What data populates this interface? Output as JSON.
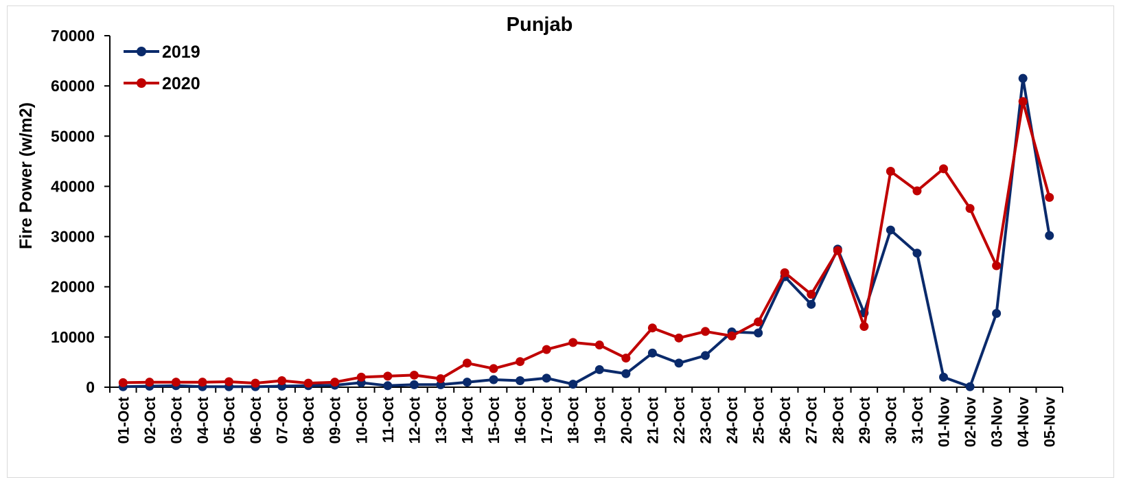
{
  "chart_data": {
    "type": "line",
    "title": "Punjab",
    "xlabel": "",
    "ylabel": "Fire Power (w/m2)",
    "ylim": [
      0,
      70000
    ],
    "yticks": [
      0,
      10000,
      20000,
      30000,
      40000,
      50000,
      60000,
      70000
    ],
    "grid": false,
    "legend_position": "top-left",
    "categories": [
      "01-Oct",
      "02-Oct",
      "03-Oct",
      "04-Oct",
      "05-Oct",
      "06-Oct",
      "07-Oct",
      "08-Oct",
      "09-Oct",
      "10-Oct",
      "11-Oct",
      "12-Oct",
      "13-Oct",
      "14-Oct",
      "15-Oct",
      "16-Oct",
      "17-Oct",
      "18-Oct",
      "19-Oct",
      "20-Oct",
      "21-Oct",
      "22-Oct",
      "23-Oct",
      "24-Oct",
      "25-Oct",
      "26-Oct",
      "27-Oct",
      "28-Oct",
      "29-Oct",
      "30-Oct",
      "31-Oct",
      "01-Nov",
      "02-Nov",
      "03-Nov",
      "04-Nov",
      "05-Nov"
    ],
    "series": [
      {
        "name": "2019",
        "color": "#0a2a6b",
        "values": [
          100,
          200,
          300,
          100,
          100,
          100,
          200,
          300,
          400,
          900,
          300,
          500,
          500,
          1000,
          1500,
          1300,
          1800,
          600,
          3500,
          2700,
          6800,
          4800,
          6300,
          11000,
          10800,
          22000,
          16500,
          27500,
          14800,
          31300,
          26700,
          2000,
          100,
          14700,
          61500,
          30200
        ]
      },
      {
        "name": "2020",
        "color": "#c00000",
        "values": [
          900,
          1000,
          1000,
          1000,
          1100,
          800,
          1300,
          800,
          1000,
          2000,
          2200,
          2400,
          1700,
          4800,
          3700,
          5100,
          7500,
          8900,
          8400,
          5800,
          11800,
          9800,
          11100,
          10200,
          13000,
          22800,
          18500,
          27200,
          12100,
          43000,
          39100,
          43500,
          35600,
          24200,
          56900,
          37800
        ]
      }
    ]
  }
}
